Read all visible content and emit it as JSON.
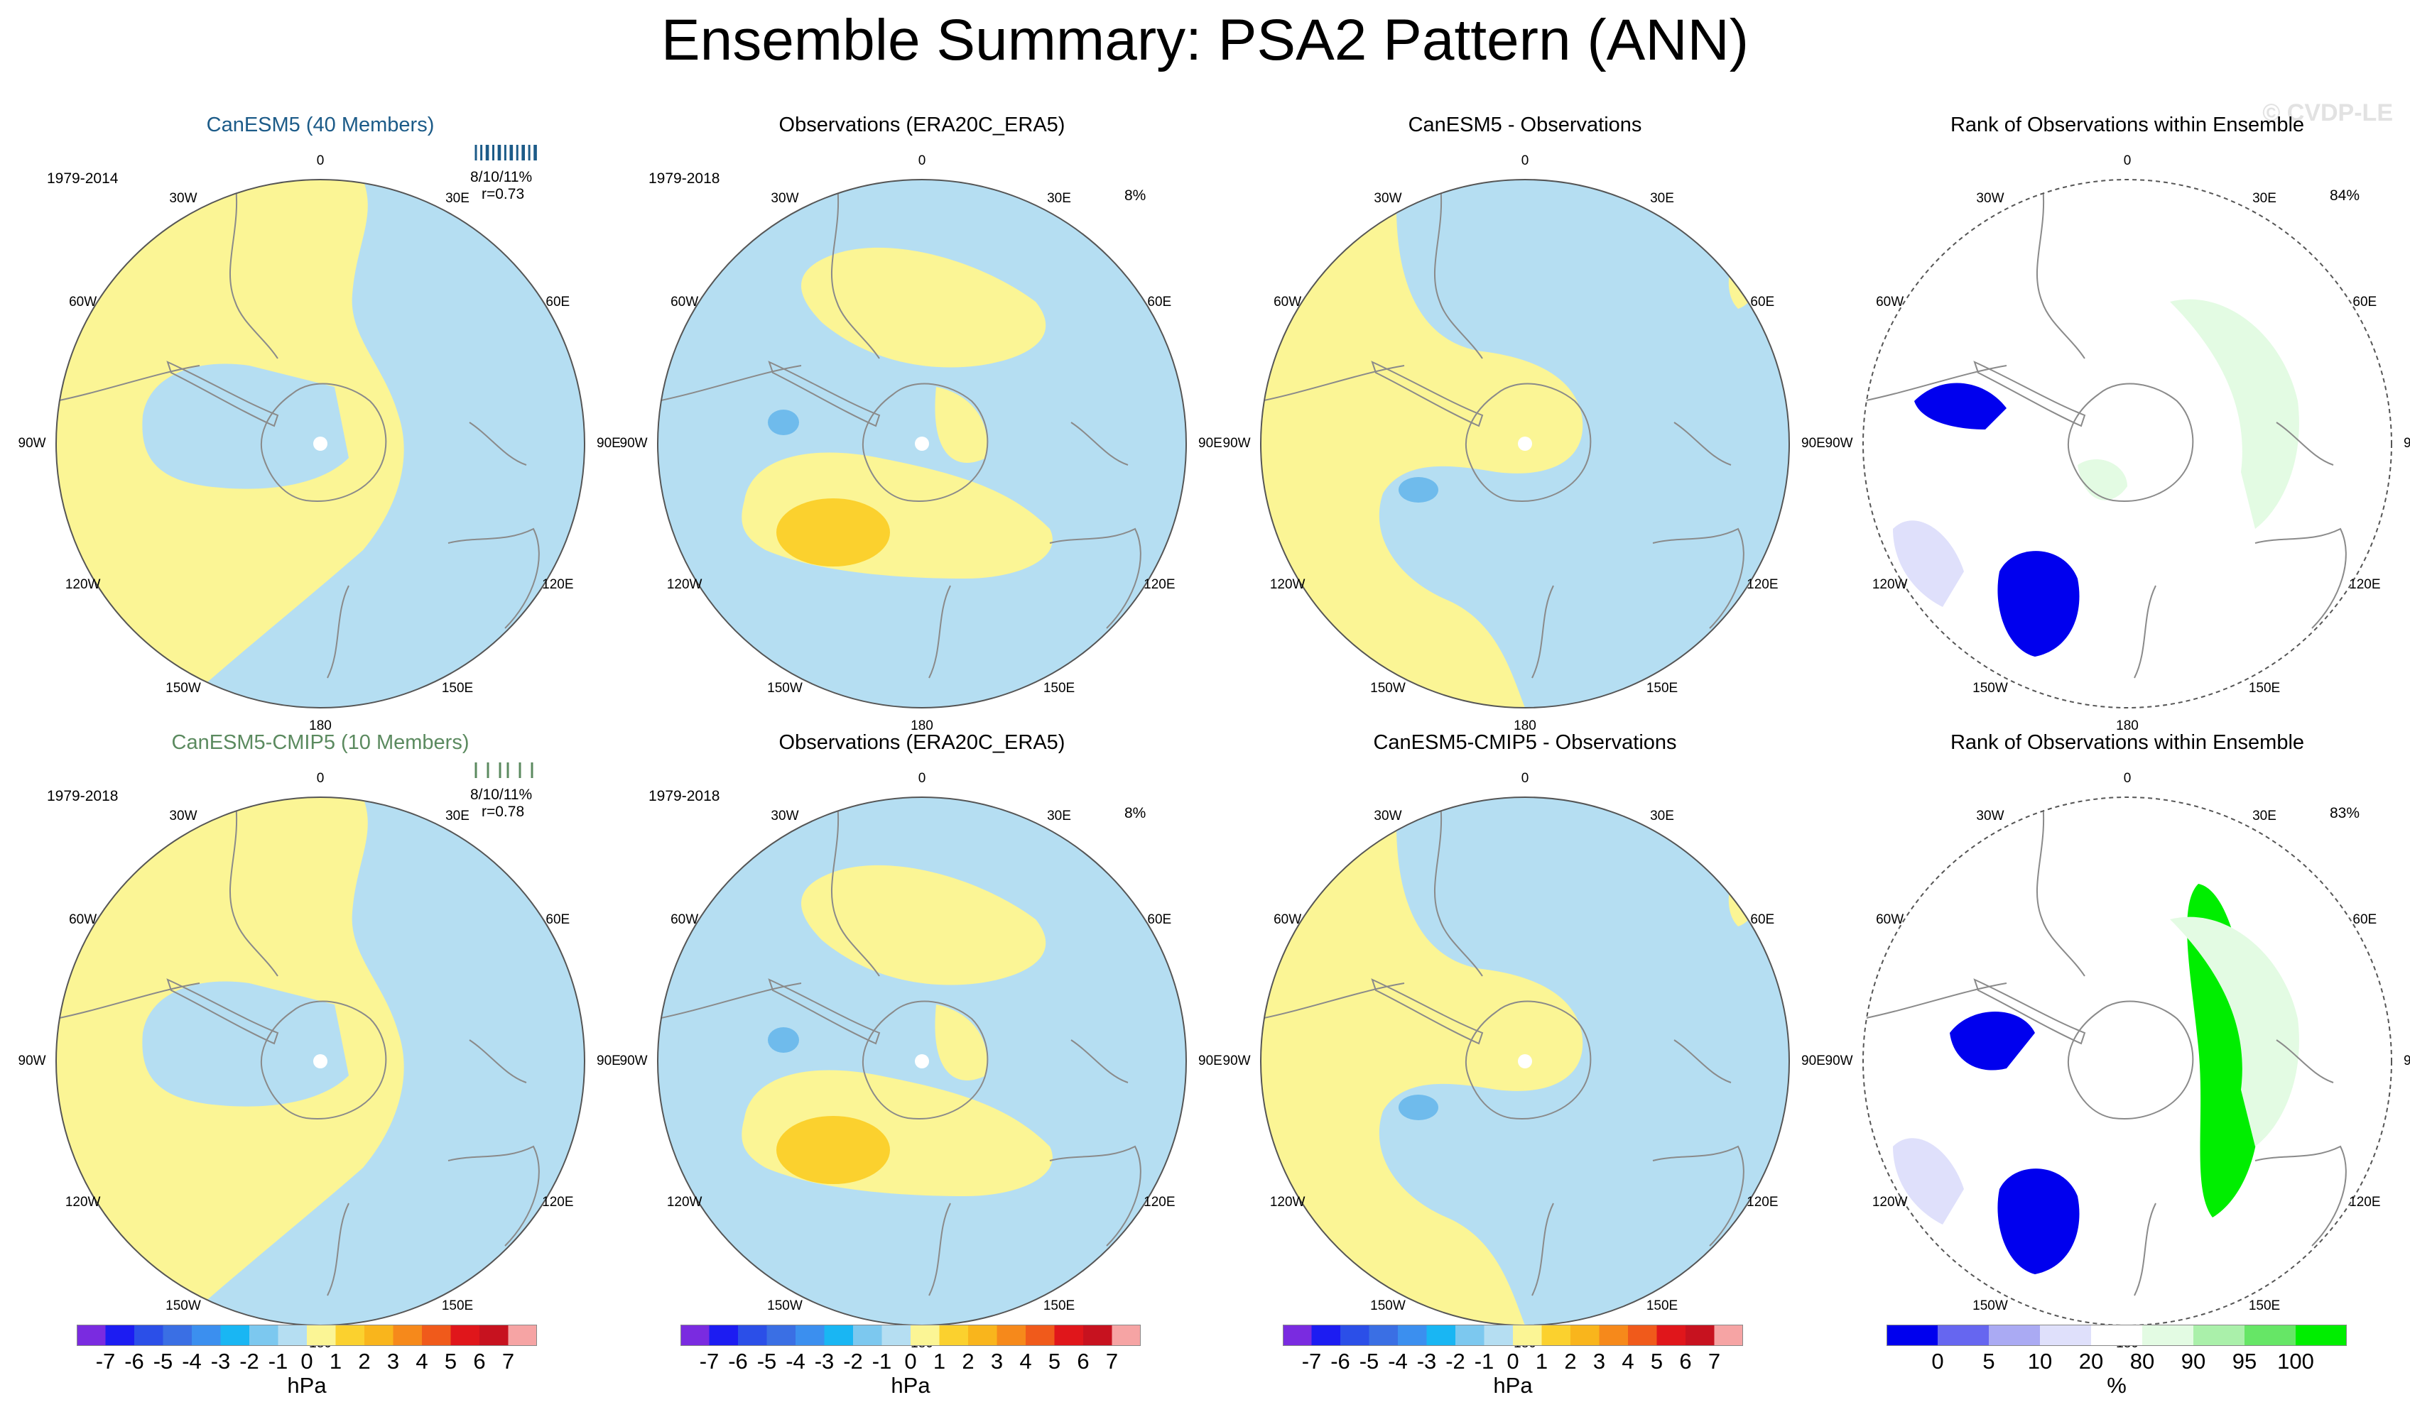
{
  "title": "Ensemble Summary: PSA2 Pattern (ANN)",
  "watermark": "© CVDP-LE",
  "lon_labels": [
    "0",
    "30E",
    "60E",
    "90E",
    "120E",
    "150E",
    "180",
    "150W",
    "120W",
    "90W",
    "60W",
    "30W"
  ],
  "colors": {
    "positive_light": "#fbf595",
    "negative_light": "#b5def2",
    "positive_strong": "#fbd12e",
    "negative_strong": "#6fbbec",
    "rank_low": "#0000ee",
    "rank_mid": "#dfe0fb",
    "rank_high": "#00ee00",
    "rank_hi_light": "#e3fbe3",
    "coast": "#8a8a8a"
  },
  "panels": [
    {
      "title": "CanESM5 (40 Members)",
      "title_style": "blue",
      "years": "1979-2014",
      "stat": "8/10/11%",
      "corr": "r=0.73",
      "pct": ""
    },
    {
      "title": "Observations (ERA20C_ERA5)",
      "title_style": "plain",
      "years": "1979-2018",
      "stat": "",
      "corr": "",
      "pct": "8%"
    },
    {
      "title": "CanESM5 - Observations",
      "title_style": "plain",
      "years": "",
      "stat": "",
      "corr": "",
      "pct": ""
    },
    {
      "title": "Rank of Observations within Ensemble",
      "title_style": "plain",
      "years": "",
      "stat": "",
      "corr": "",
      "pct": "84%"
    },
    {
      "title": "CanESM5-CMIP5 (10 Members)",
      "title_style": "green",
      "years": "1979-2018",
      "stat": "8/10/11%",
      "corr": "r=0.78",
      "pct": ""
    },
    {
      "title": "Observations (ERA20C_ERA5)",
      "title_style": "plain",
      "years": "1979-2018",
      "stat": "",
      "corr": "",
      "pct": "8%"
    },
    {
      "title": "CanESM5-CMIP5 - Observations",
      "title_style": "plain",
      "years": "",
      "stat": "",
      "corr": "",
      "pct": ""
    },
    {
      "title": "Rank of Observations within Ensemble",
      "title_style": "plain",
      "years": "",
      "stat": "",
      "corr": "",
      "pct": "83%"
    }
  ],
  "colorbar_hpa": {
    "unit": "hPa",
    "ticks": [
      "-7",
      "-6",
      "-5",
      "-4",
      "-3",
      "-2",
      "-1",
      "0",
      "1",
      "2",
      "3",
      "4",
      "5",
      "6",
      "7"
    ],
    "colors": [
      "#7a2be0",
      "#1c1cf2",
      "#2b4fe8",
      "#3a6fe4",
      "#3b8fef",
      "#19b6f3",
      "#7cc8ef",
      "#b5def2",
      "#fbf595",
      "#fbd12e",
      "#f9b51c",
      "#f6891b",
      "#f05a1b",
      "#e0161b",
      "#c7121f",
      "#f6a4a4"
    ]
  },
  "colorbar_pct": {
    "unit": "%",
    "ticks": [
      "0",
      "5",
      "10",
      "20",
      "80",
      "90",
      "95",
      "100"
    ],
    "colors": [
      "#0000ee",
      "#6666f0",
      "#aaaaf3",
      "#dfe0fb",
      "#ffffff",
      "#e3fbe3",
      "#aaf0aa",
      "#66e666",
      "#00ee00"
    ]
  }
}
